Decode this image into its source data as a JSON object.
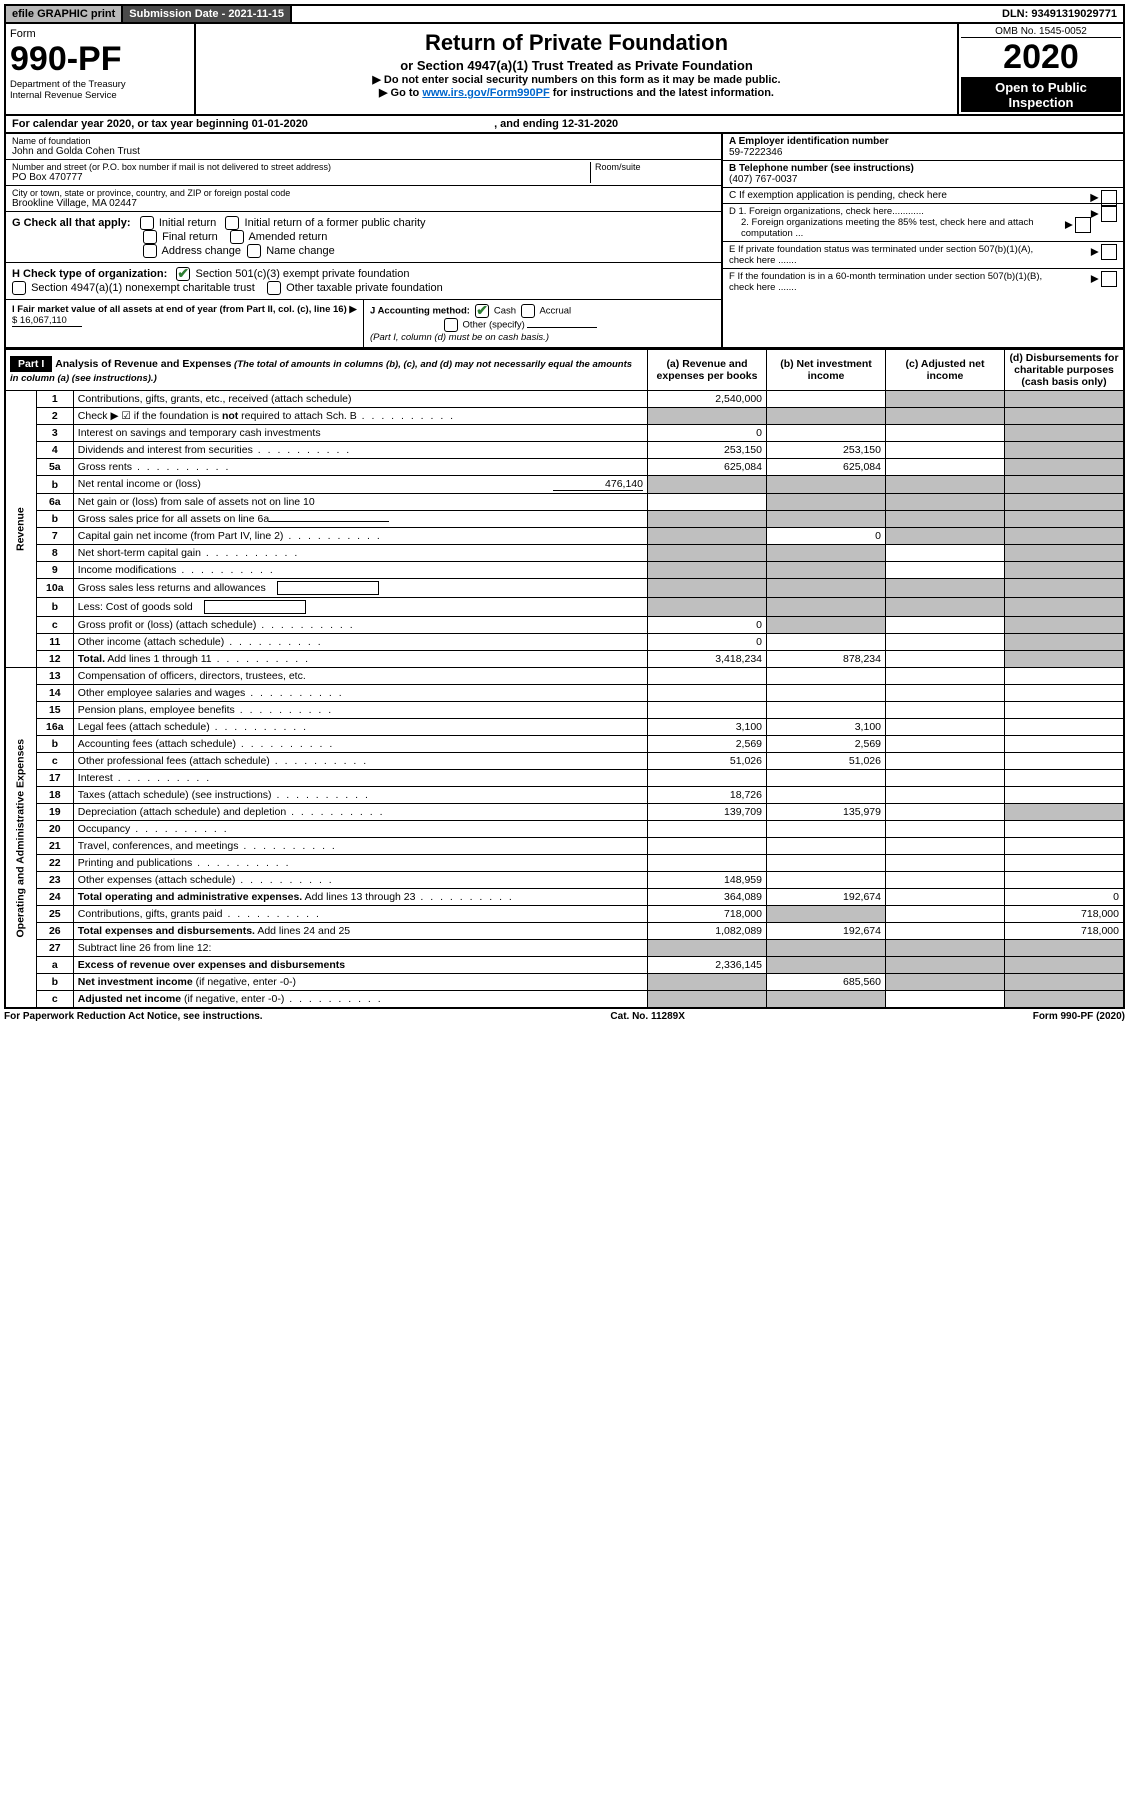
{
  "topbar": {
    "efile": "efile GRAPHIC print",
    "submission": "Submission Date - 2021-11-15",
    "dln": "DLN: 93491319029771"
  },
  "header": {
    "form_word": "Form",
    "form_no": "990-PF",
    "dept": "Department of the Treasury",
    "irs": "Internal Revenue Service",
    "title": "Return of Private Foundation",
    "subtitle": "or Section 4947(a)(1) Trust Treated as Private Foundation",
    "note1": "▶ Do not enter social security numbers on this form as it may be made public.",
    "note2_pre": "▶ Go to ",
    "note2_link": "www.irs.gov/Form990PF",
    "note2_post": " for instructions and the latest information.",
    "omb": "OMB No. 1545-0052",
    "year": "2020",
    "open": "Open to Public Inspection"
  },
  "cal": {
    "text_pre": "For calendar year 2020, or tax year beginning ",
    "begin": "01-01-2020",
    "mid": " , and ending ",
    "end": "12-31-2020"
  },
  "entity": {
    "name_label": "Name of foundation",
    "name": "John and Golda Cohen Trust",
    "addr_label": "Number and street (or P.O. box number if mail is not delivered to street address)",
    "addr": "PO Box 470777",
    "room_label": "Room/suite",
    "city_label": "City or town, state or province, country, and ZIP or foreign postal code",
    "city": "Brookline Village, MA  02447",
    "a_label": "A Employer identification number",
    "ein": "59-7222346",
    "b_label": "B Telephone number (see instructions)",
    "phone": "(407) 767-0037",
    "c_label": "C If exemption application is pending, check here",
    "d1": "D 1. Foreign organizations, check here............",
    "d2": "2. Foreign organizations meeting the 85% test, check here and attach computation ...",
    "e": "E  If private foundation status was terminated under section 507(b)(1)(A), check here .......",
    "f": "F  If the foundation is in a 60-month termination under section 507(b)(1)(B), check here .......",
    "g_label": "G Check all that apply:",
    "g_opts": [
      "Initial return",
      "Initial return of a former public charity",
      "Final return",
      "Amended return",
      "Address change",
      "Name change"
    ],
    "h_label": "H Check type of organization:",
    "h1": "Section 501(c)(3) exempt private foundation",
    "h2": "Section 4947(a)(1) nonexempt charitable trust",
    "h3": "Other taxable private foundation",
    "i_label": "I Fair market value of all assets at end of year (from Part II, col. (c), line 16)",
    "i_val": "$  16,067,110",
    "j_label": "J Accounting method:",
    "j_cash": "Cash",
    "j_accrual": "Accrual",
    "j_other": "Other (specify)",
    "j_note": "(Part I, column (d) must be on cash basis.)"
  },
  "part1": {
    "label": "Part I",
    "title": "Analysis of Revenue and Expenses",
    "title_note": " (The total of amounts in columns (b), (c), and (d) may not necessarily equal the amounts in column (a) (see instructions).)",
    "col_a": "(a)  Revenue and expenses per books",
    "col_b": "(b)  Net investment income",
    "col_c": "(c)  Adjusted net income",
    "col_d": "(d)  Disbursements for charitable purposes (cash basis only)"
  },
  "sections": {
    "revenue": "Revenue",
    "expenses": "Operating and Administrative Expenses"
  },
  "rows": [
    {
      "ln": "1",
      "desc": "Contributions, gifts, grants, etc., received (attach schedule)",
      "a": "2,540,000",
      "b": "",
      "c_sh": true,
      "d_sh": true
    },
    {
      "ln": "2",
      "desc": "Check ▶ ☑ if the foundation is <b>not</b> required to attach Sch. B",
      "dots": true,
      "a_sh": true,
      "b_sh": true,
      "c_sh": true,
      "d_sh": true
    },
    {
      "ln": "3",
      "desc": "Interest on savings and temporary cash investments",
      "a": "0",
      "b": "",
      "c": "",
      "d_sh": true
    },
    {
      "ln": "4",
      "desc": "Dividends and interest from securities",
      "dots": true,
      "a": "253,150",
      "b": "253,150",
      "c": "",
      "d_sh": true
    },
    {
      "ln": "5a",
      "desc": "Gross rents",
      "dots": true,
      "a": "625,084",
      "b": "625,084",
      "c": "",
      "d_sh": true
    },
    {
      "ln": "b",
      "desc": "Net rental income or (loss)",
      "extra": "476,140",
      "a_sh": true,
      "b_sh": true,
      "c_sh": true,
      "d_sh": true
    },
    {
      "ln": "6a",
      "desc": "Net gain or (loss) from sale of assets not on line 10",
      "a": "",
      "b_sh": true,
      "c_sh": true,
      "d_sh": true
    },
    {
      "ln": "b",
      "desc": "Gross sales price for all assets on line 6a",
      "underline": true,
      "a_sh": true,
      "b_sh": true,
      "c_sh": true,
      "d_sh": true
    },
    {
      "ln": "7",
      "desc": "Capital gain net income (from Part IV, line 2)",
      "dots": true,
      "a_sh": true,
      "b": "0",
      "c_sh": true,
      "d_sh": true
    },
    {
      "ln": "8",
      "desc": "Net short-term capital gain",
      "dots": true,
      "a_sh": true,
      "b_sh": true,
      "c": "",
      "d_sh": true
    },
    {
      "ln": "9",
      "desc": "Income modifications",
      "dots": true,
      "a_sh": true,
      "b_sh": true,
      "c": "",
      "d_sh": true
    },
    {
      "ln": "10a",
      "desc": "Gross sales less returns and allowances",
      "box": true,
      "a_sh": true,
      "b_sh": true,
      "c_sh": true,
      "d_sh": true
    },
    {
      "ln": "b",
      "desc": "Less: Cost of goods sold",
      "dots": true,
      "box": true,
      "a_sh": true,
      "b_sh": true,
      "c_sh": true,
      "d_sh": true
    },
    {
      "ln": "c",
      "desc": "Gross profit or (loss) (attach schedule)",
      "dots": true,
      "a": "0",
      "b_sh": true,
      "c": "",
      "d_sh": true
    },
    {
      "ln": "11",
      "desc": "Other income (attach schedule)",
      "dots": true,
      "a": "0",
      "b": "",
      "c": "",
      "d_sh": true
    },
    {
      "ln": "12",
      "desc": "<b>Total.</b> Add lines 1 through 11",
      "dots": true,
      "a": "3,418,234",
      "b": "878,234",
      "c": "",
      "d_sh": true
    },
    {
      "ln": "13",
      "desc": "Compensation of officers, directors, trustees, etc.",
      "a": "",
      "b": "",
      "c": "",
      "d": ""
    },
    {
      "ln": "14",
      "desc": "Other employee salaries and wages",
      "dots": true,
      "a": "",
      "b": "",
      "c": "",
      "d": ""
    },
    {
      "ln": "15",
      "desc": "Pension plans, employee benefits",
      "dots": true,
      "a": "",
      "b": "",
      "c": "",
      "d": ""
    },
    {
      "ln": "16a",
      "desc": "Legal fees (attach schedule)",
      "dots": true,
      "a": "3,100",
      "b": "3,100",
      "c": "",
      "d": ""
    },
    {
      "ln": "b",
      "desc": "Accounting fees (attach schedule)",
      "dots": true,
      "a": "2,569",
      "b": "2,569",
      "c": "",
      "d": ""
    },
    {
      "ln": "c",
      "desc": "Other professional fees (attach schedule)",
      "dots": true,
      "a": "51,026",
      "b": "51,026",
      "c": "",
      "d": ""
    },
    {
      "ln": "17",
      "desc": "Interest",
      "dots": true,
      "a": "",
      "b": "",
      "c": "",
      "d": ""
    },
    {
      "ln": "18",
      "desc": "Taxes (attach schedule) (see instructions)",
      "dots": true,
      "a": "18,726",
      "b": "",
      "c": "",
      "d": ""
    },
    {
      "ln": "19",
      "desc": "Depreciation (attach schedule) and depletion",
      "dots": true,
      "a": "139,709",
      "b": "135,979",
      "c": "",
      "d_sh": true
    },
    {
      "ln": "20",
      "desc": "Occupancy",
      "dots": true,
      "a": "",
      "b": "",
      "c": "",
      "d": ""
    },
    {
      "ln": "21",
      "desc": "Travel, conferences, and meetings",
      "dots": true,
      "a": "",
      "b": "",
      "c": "",
      "d": ""
    },
    {
      "ln": "22",
      "desc": "Printing and publications",
      "dots": true,
      "a": "",
      "b": "",
      "c": "",
      "d": ""
    },
    {
      "ln": "23",
      "desc": "Other expenses (attach schedule)",
      "dots": true,
      "a": "148,959",
      "b": "",
      "c": "",
      "d": ""
    },
    {
      "ln": "24",
      "desc": "<b>Total operating and administrative expenses.</b> Add lines 13 through 23",
      "dots": true,
      "a": "364,089",
      "b": "192,674",
      "c": "",
      "d": "0"
    },
    {
      "ln": "25",
      "desc": "Contributions, gifts, grants paid",
      "dots": true,
      "a": "718,000",
      "b_sh": true,
      "c": "",
      "d": "718,000"
    },
    {
      "ln": "26",
      "desc": "<b>Total expenses and disbursements.</b> Add lines 24 and 25",
      "a": "1,082,089",
      "b": "192,674",
      "c": "",
      "d": "718,000"
    },
    {
      "ln": "27",
      "desc": "Subtract line 26 from line 12:",
      "a_sh": true,
      "b_sh": true,
      "c_sh": true,
      "d_sh": true
    },
    {
      "ln": "a",
      "desc": "<b>Excess of revenue over expenses and disbursements</b>",
      "a": "2,336,145",
      "b_sh": true,
      "c_sh": true,
      "d_sh": true
    },
    {
      "ln": "b",
      "desc": "<b>Net investment income</b> (if negative, enter -0-)",
      "a_sh": true,
      "b": "685,560",
      "c_sh": true,
      "d_sh": true
    },
    {
      "ln": "c",
      "desc": "<b>Adjusted net income</b> (if negative, enter -0-)",
      "dots": true,
      "a_sh": true,
      "b_sh": true,
      "c": "",
      "d_sh": true
    }
  ],
  "footer": {
    "left": "For Paperwork Reduction Act Notice, see instructions.",
    "mid": "Cat. No. 11289X",
    "right": "Form 990-PF (2020)"
  }
}
